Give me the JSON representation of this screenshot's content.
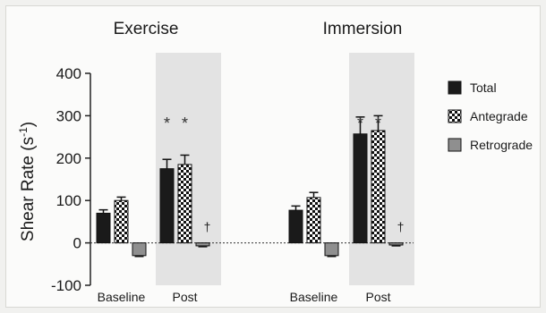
{
  "chart_data": {
    "type": "bar",
    "ylabel": "Shear Rate (s",
    "ylabel_sup": "-1",
    "ylabel_close": ")",
    "ylim": [
      -100,
      400
    ],
    "yticks": [
      "400",
      "300",
      "200",
      "100",
      "0",
      "-100"
    ],
    "grid": false,
    "legend_position": "right",
    "panels": [
      {
        "title": "Exercise",
        "categories": [
          "Baseline",
          "Post"
        ],
        "highlighted_category": "Post",
        "series": [
          {
            "name": "Total",
            "values": [
              70,
              175
            ],
            "errors": [
              8,
              22
            ]
          },
          {
            "name": "Antegrade",
            "values": [
              100,
              185
            ],
            "errors": [
              8,
              22
            ]
          },
          {
            "name": "Retrograde",
            "values": [
              -30,
              -7
            ],
            "errors": [
              2,
              2
            ]
          }
        ],
        "annotations": [
          {
            "category": "Post",
            "series": "Total",
            "text": "*"
          },
          {
            "category": "Post",
            "series": "Antegrade",
            "text": "*"
          },
          {
            "category": "Post",
            "series": "Retrograde",
            "text": "†"
          }
        ]
      },
      {
        "title": "Immersion",
        "categories": [
          "Baseline",
          "Post"
        ],
        "highlighted_category": "Post",
        "series": [
          {
            "name": "Total",
            "values": [
              77,
              257
            ],
            "errors": [
              10,
              40
            ]
          },
          {
            "name": "Antegrade",
            "values": [
              107,
              265
            ],
            "errors": [
              12,
              35
            ]
          },
          {
            "name": "Retrograde",
            "values": [
              -30,
              -5
            ],
            "errors": [
              2,
              2
            ]
          }
        ],
        "annotations": [
          {
            "category": "Post",
            "series": "Total",
            "text": "*"
          },
          {
            "category": "Post",
            "series": "Antegrade",
            "text": "*"
          },
          {
            "category": "Post",
            "series": "Retrograde",
            "text": "†"
          }
        ]
      }
    ],
    "legend": [
      "Total",
      "Antegrade",
      "Retrograde"
    ],
    "colors": {
      "Total": "#1a1a1a",
      "Antegrade": "checker",
      "Retrograde": "#8f8f8f",
      "highlight": "#e3e3e3"
    }
  }
}
